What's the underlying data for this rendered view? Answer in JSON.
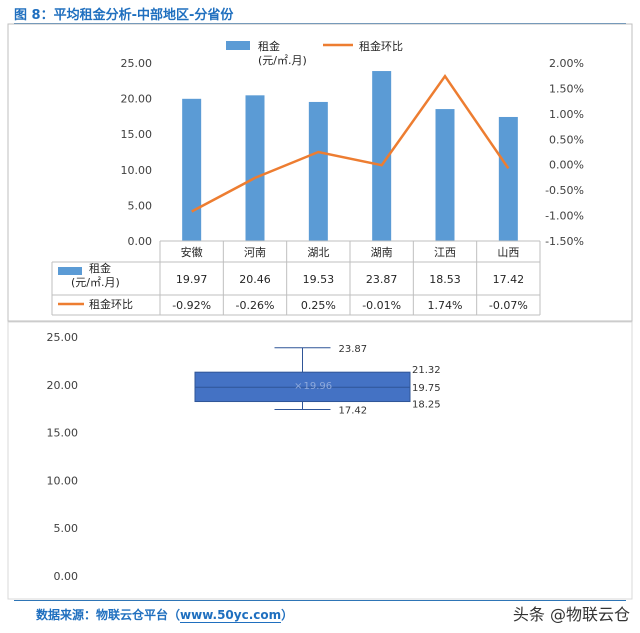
{
  "header": {
    "title": "图 8：平均租金分析-中部地区-分省份"
  },
  "footer": {
    "source": "数据来源：物联云仓平台（",
    "url": "www.50yc.com",
    "source_end": "）",
    "watermark": "头条 @物联云仓"
  },
  "colors": {
    "bar": "#5b9bd5",
    "line": "#ed7d31",
    "accent": "#1f6fbf",
    "box": "#4472c4"
  },
  "chart_data": [
    {
      "type": "bar",
      "categories": [
        "安徽",
        "河南",
        "湖北",
        "湖南",
        "江西",
        "山西"
      ],
      "series": [
        {
          "name": "租金\n(元/㎡.月)",
          "type": "bar",
          "axis": "left",
          "values": [
            19.97,
            20.46,
            19.53,
            23.87,
            18.53,
            17.42
          ],
          "labels": [
            "19.97",
            "20.46",
            "19.53",
            "23.87",
            "18.53",
            "17.42"
          ]
        },
        {
          "name": "租金环比",
          "type": "line",
          "axis": "right",
          "values": [
            -0.92,
            -0.26,
            0.25,
            -0.01,
            1.74,
            -0.07
          ],
          "labels": [
            "-0.92%",
            "-0.26%",
            "0.25%",
            "-0.01%",
            "1.74%",
            "-0.07%"
          ]
        }
      ],
      "y_left": {
        "ylim": [
          0,
          25
        ],
        "ticks": [
          "25.00",
          "20.00",
          "15.00",
          "10.00",
          "5.00",
          "0.00"
        ]
      },
      "y_right": {
        "ylim": [
          -1.5,
          2.0
        ],
        "ticks": [
          "2.00%",
          "1.50%",
          "1.00%",
          "0.50%",
          "0.00%",
          "-0.50%",
          "-1.00%",
          "-1.50%"
        ]
      },
      "legend": {
        "position": "top",
        "bar_label_1": "租金",
        "bar_label_2": "(元/㎡.月)",
        "line_label": "租金环比"
      },
      "data_table": true
    },
    {
      "type": "box",
      "min": 17.42,
      "q1": 18.25,
      "median": 19.75,
      "mean": 19.96,
      "q3": 21.32,
      "max": 23.87,
      "labels": {
        "max": "23.87",
        "q3": "21.32",
        "median": "19.75",
        "q1": "18.25",
        "min": "17.42",
        "mean": "19.96"
      },
      "mean_marker": "×",
      "ylim": [
        0,
        25
      ],
      "ticks": [
        "25.00",
        "20.00",
        "15.00",
        "10.00",
        "5.00",
        "0.00"
      ]
    }
  ]
}
